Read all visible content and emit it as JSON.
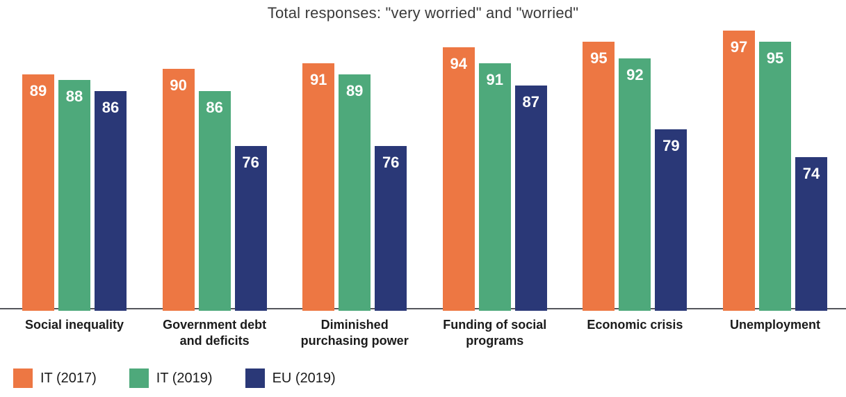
{
  "title": "Total responses: \"very worried\" and \"worried\"",
  "chart_data": {
    "type": "bar",
    "title": "Total responses: \"very worried\" and \"worried\"",
    "categories": [
      "Social inequality",
      "Government debt and deficits",
      "Diminished purchasing power",
      "Funding of social programs",
      "Economic crisis",
      "Unemployment"
    ],
    "category_label_lines": [
      [
        "Social inequality"
      ],
      [
        "Government debt",
        "and deficits"
      ],
      [
        "Diminished",
        "purchasing power"
      ],
      [
        "Funding of social",
        "programs"
      ],
      [
        "Economic crisis"
      ],
      [
        "Unemployment"
      ]
    ],
    "series": [
      {
        "name": "IT (2017)",
        "color": "#ED7743",
        "values": [
          89,
          90,
          91,
          94,
          95,
          97
        ]
      },
      {
        "name": "IT (2019)",
        "color": "#4EA97B",
        "values": [
          88,
          86,
          89,
          91,
          92,
          95
        ]
      },
      {
        "name": "EU (2019)",
        "color": "#2A3877",
        "values": [
          86,
          76,
          76,
          87,
          79,
          74
        ]
      }
    ],
    "value_labels_shown": true,
    "legend": {
      "position": "bottom-left",
      "entries": [
        "IT (2017)",
        "IT (2019)",
        "EU (2019)"
      ]
    },
    "grid": false,
    "y_axis_visible": false,
    "x_axis_line_visible": true,
    "ylim_implied": [
      0,
      100
    ],
    "visual_baseline_value": 46
  },
  "colors": {
    "orange": "#ED7743",
    "green": "#4EA97B",
    "navy": "#2A3877",
    "axis_line": "#54565B",
    "title_text": "#3A3A3A",
    "category_text": "#1B1B1B",
    "value_label_text": "#FFFFFF",
    "background": "#FFFFFF"
  }
}
